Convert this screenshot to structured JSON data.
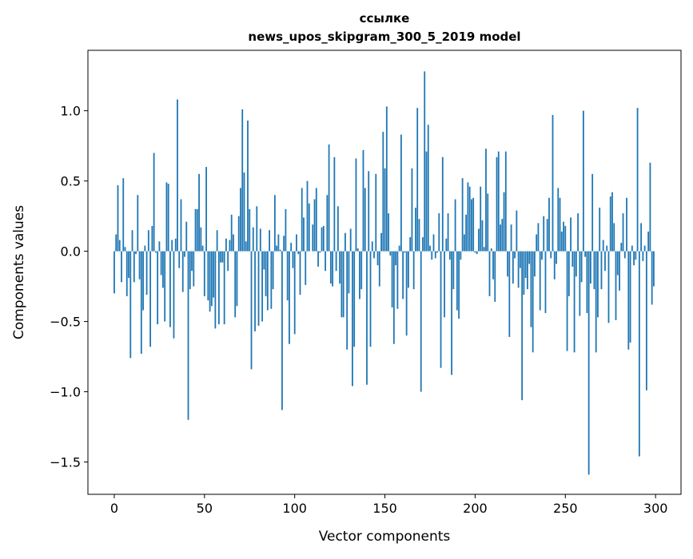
{
  "chart_data": {
    "type": "bar",
    "title": [
      "ссылке",
      "news_upos_skipgram_300_5_2019 model"
    ],
    "xlabel": "Vector components",
    "ylabel": "Components values",
    "xlim": [
      -14.6,
      314.1
    ],
    "ylim": [
      -1.73,
      1.43
    ],
    "xticks": [
      0,
      50,
      100,
      150,
      200,
      250,
      300
    ],
    "xtick_labels": [
      "0",
      "50",
      "100",
      "150",
      "200",
      "250",
      "300"
    ],
    "yticks": [
      -1.5,
      -1.0,
      -0.5,
      0.0,
      0.5,
      1.0
    ],
    "ytick_labels": [
      "−1.5",
      "−1.0",
      "−0.5",
      "0.0",
      "0.5",
      "1.0"
    ],
    "grid": false,
    "color": "#1f77b4",
    "values": [
      -0.3,
      0.12,
      0.47,
      0.08,
      -0.22,
      0.52,
      0.03,
      -0.32,
      -0.19,
      -0.76,
      0.15,
      -0.22,
      -0.02,
      0.4,
      -0.2,
      -0.73,
      -0.42,
      0.04,
      -0.31,
      0.15,
      -0.68,
      0.18,
      0.7,
      -0.01,
      -0.52,
      0.07,
      -0.17,
      -0.26,
      -0.5,
      0.49,
      0.48,
      -0.54,
      0.08,
      -0.62,
      0.09,
      1.08,
      -0.12,
      0.37,
      -0.29,
      -0.04,
      0.21,
      -1.2,
      -0.27,
      -0.14,
      -0.25,
      0.3,
      0.3,
      0.55,
      0.17,
      0.04,
      -0.32,
      0.6,
      -0.35,
      -0.43,
      -0.39,
      -0.33,
      -0.55,
      0.15,
      -0.52,
      -0.08,
      -0.08,
      -0.52,
      0.09,
      -0.14,
      0.08,
      0.26,
      0.12,
      -0.47,
      -0.39,
      0.25,
      0.45,
      1.01,
      0.56,
      0.07,
      0.93,
      0.3,
      -0.84,
      0.17,
      -0.57,
      0.32,
      -0.53,
      0.16,
      -0.5,
      -0.13,
      -0.32,
      -0.42,
      0.15,
      -0.41,
      -0.27,
      0.4,
      0.04,
      0.12,
      0.01,
      -1.13,
      0.11,
      0.3,
      -0.35,
      -0.66,
      0.06,
      -0.12,
      -0.59,
      0.12,
      -0.02,
      -0.31,
      0.45,
      0.24,
      -0.24,
      0.5,
      0.34,
      0.0,
      0.19,
      0.37,
      0.45,
      -0.11,
      -0.01,
      0.17,
      0.18,
      -0.14,
      0.4,
      0.76,
      -0.23,
      -0.25,
      0.67,
      -0.14,
      0.32,
      -0.23,
      -0.47,
      -0.47,
      0.13,
      -0.7,
      -0.3,
      0.16,
      -0.96,
      -0.68,
      0.66,
      0.02,
      -0.34,
      -0.27,
      0.72,
      0.45,
      -0.95,
      0.57,
      -0.68,
      0.07,
      -0.05,
      0.55,
      -0.1,
      -0.25,
      0.13,
      0.85,
      0.59,
      1.03,
      0.27,
      -0.03,
      -0.4,
      -0.66,
      -0.1,
      -0.41,
      0.04,
      0.83,
      -0.34,
      -0.01,
      -0.6,
      -0.26,
      0.1,
      0.59,
      -0.27,
      0.31,
      1.02,
      0.23,
      -1.0,
      0.1,
      1.28,
      0.71,
      0.9,
      0.04,
      -0.06,
      0.12,
      -0.05,
      -0.01,
      0.27,
      -0.83,
      0.67,
      -0.47,
      0.09,
      0.27,
      -0.06,
      -0.88,
      -0.27,
      0.37,
      -0.42,
      -0.48,
      -0.06,
      0.52,
      0.12,
      0.26,
      0.49,
      0.46,
      0.37,
      0.38,
      -0.01,
      -0.02,
      0.16,
      0.46,
      0.22,
      0.03,
      0.73,
      0.41,
      -0.32,
      0.02,
      -0.2,
      -0.36,
      0.67,
      0.71,
      0.19,
      0.23,
      0.42,
      0.71,
      -0.18,
      -0.61,
      0.19,
      -0.23,
      -0.05,
      0.29,
      -0.26,
      -0.12,
      -1.06,
      -0.31,
      -0.19,
      -0.27,
      -0.09,
      -0.54,
      -0.72,
      -0.18,
      0.12,
      0.2,
      -0.42,
      -0.06,
      0.25,
      -0.44,
      0.23,
      0.38,
      -0.05,
      0.97,
      -0.2,
      -0.09,
      0.45,
      0.38,
      0.14,
      0.21,
      0.18,
      -0.71,
      -0.32,
      0.24,
      -0.11,
      -0.72,
      -0.18,
      0.27,
      -0.46,
      -0.22,
      1.0,
      -0.04,
      -0.44,
      -1.59,
      -0.23,
      0.55,
      -0.27,
      -0.72,
      -0.47,
      0.31,
      -0.27,
      0.08,
      -0.14,
      0.04,
      -0.51,
      0.39,
      0.42,
      0.2,
      -0.49,
      -0.17,
      -0.28,
      0.06,
      0.27,
      -0.05,
      0.38,
      -0.7,
      -0.65,
      0.04,
      -0.1,
      -0.06,
      1.02,
      -1.46,
      0.2,
      -0.07,
      0.04,
      -0.99,
      0.14,
      0.63,
      -0.38,
      -0.25
    ]
  }
}
